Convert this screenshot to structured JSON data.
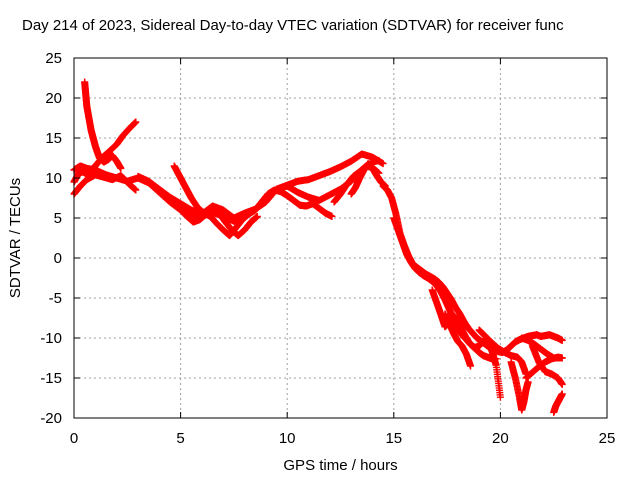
{
  "chart_data": {
    "type": "scatter",
    "title": "Day 214 of 2023, Sidereal Day-to-day VTEC variation (SDTVAR) for receiver func",
    "xlabel": "GPS time / hours",
    "ylabel": "SDTVAR / TECUs",
    "xlim": [
      0,
      25
    ],
    "ylim": [
      -20,
      25
    ],
    "xticks": [
      0,
      5,
      10,
      15,
      20,
      25
    ],
    "yticks": [
      -20,
      -15,
      -10,
      -5,
      0,
      5,
      10,
      15,
      20,
      25
    ],
    "grid": true,
    "marker": "+",
    "color": "#ff0000",
    "series": [
      {
        "name": "trace-1",
        "x": [
          0.5,
          0.55,
          0.6,
          0.7,
          0.8,
          0.9,
          1.0,
          1.1,
          1.2,
          1.4,
          1.6,
          1.8,
          2.0,
          2.2
        ],
        "y": [
          22,
          20.5,
          19,
          17.5,
          16,
          15,
          14,
          13.2,
          12.5,
          12,
          12.3,
          12.8,
          12.1,
          11.2
        ]
      },
      {
        "name": "trace-2",
        "x": [
          0.0,
          0.2,
          0.4,
          0.6,
          0.8,
          1.0,
          1.3,
          1.6,
          2.0,
          2.3,
          2.6,
          2.9
        ],
        "y": [
          9.5,
          10.5,
          10.8,
          10.5,
          11.0,
          11.5,
          12.5,
          13.2,
          14.2,
          15.3,
          16.2,
          17.0
        ]
      },
      {
        "name": "trace-3",
        "x": [
          0.0,
          0.3,
          0.6,
          1.0,
          1.5,
          2.0,
          2.5,
          3.0,
          3.5,
          4.0,
          4.5,
          5.0,
          5.5,
          6.0,
          6.5,
          7.0,
          7.5,
          8.0,
          8.5,
          9.0,
          9.5,
          10.0,
          10.5,
          11.0,
          11.5,
          12.0,
          12.5,
          13.0,
          13.5,
          14.0,
          14.5
        ],
        "y": [
          11,
          11.5,
          11.2,
          11.0,
          10.4,
          10.0,
          9.6,
          10.0,
          9.4,
          8.2,
          7.0,
          6.0,
          5.5,
          5.2,
          5.7,
          5.2,
          4.6,
          5.2,
          6.0,
          7.3,
          8.6,
          9.1,
          9.6,
          9.8,
          10.3,
          10.8,
          11.4,
          12.1,
          13.0,
          12.6,
          11.8
        ]
      },
      {
        "name": "trace-4",
        "x": [
          0.0,
          0.3,
          0.6,
          1.0,
          1.4,
          1.8,
          2.2,
          2.6,
          2.9
        ],
        "y": [
          8.0,
          9.0,
          9.8,
          10.4,
          10.1,
          9.8,
          10.3,
          9.2,
          8.5
        ]
      },
      {
        "name": "trace-5",
        "x": [
          3.0,
          3.5,
          4.0,
          4.5,
          5.0,
          5.5,
          6.0,
          6.5,
          7.0,
          7.5,
          8.0,
          8.5,
          9.0,
          9.5,
          10.0,
          10.5,
          11.0,
          11.5,
          12.0,
          12.5,
          13.0,
          13.5,
          14.0,
          14.3
        ],
        "y": [
          10.2,
          9.6,
          8.6,
          7.6,
          6.8,
          6.0,
          5.5,
          6.5,
          6.0,
          5.0,
          5.6,
          6.1,
          7.0,
          8.6,
          9.0,
          8.2,
          7.6,
          7.2,
          7.9,
          8.6,
          9.6,
          11.0,
          12.0,
          12.2
        ]
      },
      {
        "name": "trace-6",
        "x": [
          4.7,
          4.9,
          5.1,
          5.3,
          5.5,
          5.8,
          6.1,
          6.4,
          6.7,
          7.0,
          7.3,
          7.6,
          7.9,
          8.2,
          8.5,
          8.8,
          9.1,
          9.4,
          9.7,
          10.0,
          10.3,
          10.6,
          10.9,
          11.2,
          11.5,
          11.8,
          12.1
        ],
        "y": [
          11.5,
          10.5,
          9.5,
          8.5,
          7.5,
          6.3,
          5.6,
          5.2,
          4.3,
          3.5,
          2.8,
          3.8,
          4.8,
          5.5,
          6.0,
          7.0,
          8.0,
          8.5,
          8.3,
          7.8,
          7.2,
          6.6,
          6.5,
          6.8,
          6.2,
          5.6,
          5.2
        ]
      },
      {
        "name": "trace-7",
        "x": [
          5.0,
          5.3,
          5.6,
          5.9,
          6.2,
          6.5,
          6.8,
          7.1,
          7.4,
          7.7,
          8.0,
          8.3,
          8.6
        ],
        "y": [
          6.0,
          5.2,
          4.5,
          4.8,
          5.5,
          6.0,
          5.6,
          4.5,
          3.5,
          2.8,
          3.5,
          4.5,
          5.2
        ]
      },
      {
        "name": "trace-8",
        "x": [
          12.2,
          12.5,
          12.8,
          13.1,
          13.4,
          13.7,
          14.0,
          14.3
        ],
        "y": [
          7.0,
          8.0,
          9.2,
          10.2,
          10.8,
          11.5,
          11.3,
          10.6
        ]
      },
      {
        "name": "trace-9",
        "x": [
          13.0,
          13.2,
          13.4,
          13.6,
          13.8,
          14.0,
          14.2,
          14.4,
          14.6
        ],
        "y": [
          8.0,
          8.8,
          10.0,
          11.0,
          11.8,
          11.2,
          10.3,
          9.5,
          9.0
        ]
      },
      {
        "name": "trace-10",
        "x": [
          14.5,
          14.7,
          14.9,
          15.1,
          15.3,
          15.5,
          15.7,
          15.9,
          16.1,
          16.3,
          16.5,
          16.7,
          16.9,
          17.1,
          17.3,
          17.5,
          17.7,
          17.9,
          18.1,
          18.3,
          18.5,
          18.7,
          18.9,
          19.1,
          19.3,
          19.5,
          19.7,
          19.9,
          20.1,
          20.3,
          20.5,
          20.7,
          20.9,
          21.1,
          21.3,
          21.5,
          21.7,
          21.9,
          22.1,
          22.3,
          22.5,
          22.7,
          22.9
        ],
        "y": [
          9.0,
          8.5,
          7.5,
          5.5,
          3.0,
          1.5,
          0.2,
          -0.8,
          -1.2,
          -1.6,
          -2.0,
          -2.3,
          -2.6,
          -3.0,
          -3.6,
          -4.4,
          -5.2,
          -6.2,
          -7.0,
          -8.0,
          -8.8,
          -9.4,
          -10.0,
          -10.4,
          -10.8,
          -11.2,
          -11.5,
          -11.7,
          -11.8,
          -11.5,
          -11.0,
          -10.5,
          -10.2,
          -10.0,
          -9.8,
          -9.7,
          -9.6,
          -9.8,
          -9.7,
          -9.6,
          -9.8,
          -10.0,
          -10.3
        ]
      },
      {
        "name": "trace-11",
        "x": [
          15.0,
          15.2,
          15.4,
          15.6,
          15.8,
          16.0,
          16.2,
          16.4,
          16.6,
          16.8,
          17.0,
          17.2,
          17.4,
          17.6,
          17.8,
          18.0,
          18.2,
          18.4,
          18.6,
          18.8,
          19.0,
          19.2,
          19.4,
          19.6,
          19.8
        ],
        "y": [
          5.0,
          3.5,
          2.0,
          0.5,
          -0.5,
          -1.3,
          -1.8,
          -2.2,
          -2.5,
          -2.9,
          -3.4,
          -4.2,
          -5.2,
          -6.4,
          -7.6,
          -8.8,
          -9.6,
          -10.2,
          -10.8,
          -11.3,
          -11.8,
          -12.2,
          -12.4,
          -12.6,
          -12.6
        ]
      },
      {
        "name": "trace-12",
        "x": [
          16.8,
          17.0,
          17.2,
          17.4,
          17.6,
          17.8,
          18.0,
          18.2,
          18.4,
          18.6,
          18.8,
          19.0,
          19.2,
          19.4,
          19.6,
          19.8,
          20.0
        ],
        "y": [
          -4.0,
          -5.5,
          -7.0,
          -8.6,
          -8.0,
          -7.2,
          -7.8,
          -9.0,
          -10.0,
          -10.8,
          -11.2,
          -11.0,
          -10.4,
          -10.4,
          -11.6,
          -13.4,
          -17.4
        ]
      },
      {
        "name": "trace-13",
        "x": [
          17.4,
          17.6,
          17.8,
          18.0,
          18.2,
          18.4,
          18.6
        ],
        "y": [
          -7.0,
          -8.2,
          -9.4,
          -10.4,
          -11.0,
          -12.0,
          -13.5
        ]
      },
      {
        "name": "trace-14",
        "x": [
          19.0,
          19.3,
          19.6,
          19.9,
          20.2,
          20.5,
          20.8,
          21.0,
          21.2
        ],
        "y": [
          -9.0,
          -9.8,
          -10.6,
          -11.3,
          -11.8,
          -12.2,
          -12.4,
          -13.0,
          -14.5
        ]
      },
      {
        "name": "trace-15",
        "x": [
          20.5,
          20.7,
          20.9,
          21.0,
          21.1,
          21.2,
          21.3
        ],
        "y": [
          -13.0,
          -15.0,
          -17.5,
          -19.0,
          -18.0,
          -16.5,
          -15.5
        ]
      },
      {
        "name": "trace-16",
        "x": [
          21.0,
          21.3,
          21.6,
          21.9,
          22.2,
          22.5,
          22.8
        ],
        "y": [
          -10.0,
          -10.3,
          -10.8,
          -11.4,
          -12.0,
          -12.5,
          -12.5
        ]
      },
      {
        "name": "trace-17",
        "x": [
          21.5,
          21.8,
          22.1,
          22.4,
          22.7,
          22.9
        ],
        "y": [
          -11.0,
          -13.0,
          -14.2,
          -14.5,
          -15.0,
          -15.8
        ]
      },
      {
        "name": "trace-18",
        "x": [
          21.2,
          21.5,
          21.8,
          22.1,
          22.4,
          22.7,
          22.9
        ],
        "y": [
          -15.0,
          -14.3,
          -13.6,
          -13.0,
          -12.6,
          -12.4,
          -12.5
        ]
      },
      {
        "name": "trace-19",
        "x": [
          22.5,
          22.6,
          22.7,
          22.8,
          22.9
        ],
        "y": [
          -19.3,
          -18.5,
          -18.0,
          -17.5,
          -17.0
        ]
      }
    ]
  }
}
